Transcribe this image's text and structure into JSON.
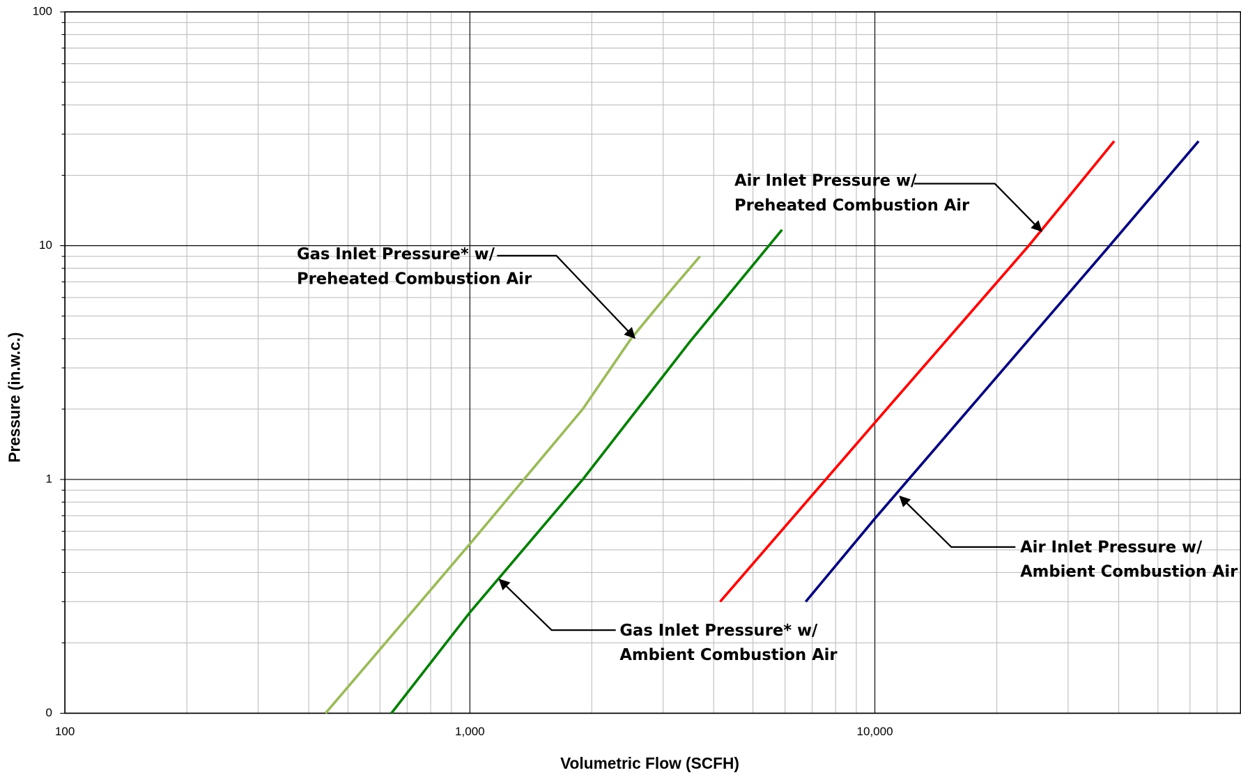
{
  "chart_data": {
    "type": "line",
    "x_label": "Volumetric Flow (SCFH)",
    "y_label": "Pressure (in.w.c.)",
    "log_x": true,
    "log_y": true,
    "grid": true,
    "minor_grid": true,
    "xlim": [
      100,
      80000
    ],
    "xticks": [
      100,
      {
        "value": 1000,
        "label": "1,000"
      },
      {
        "value": 10000,
        "label": "10,000"
      }
    ],
    "ylim": [
      0.1,
      100
    ],
    "yticks": [
      {
        "value": 0.1,
        "label": "0"
      },
      1,
      10,
      100
    ],
    "series": [
      {
        "color": "#9bbb59",
        "x": [
          440,
          1000,
          1900,
          2500,
          3150,
          3700
        ],
        "values": [
          0.1,
          0.53,
          2.0,
          4.0,
          6.5,
          9.0
        ]
      },
      {
        "color": "#008000",
        "x": [
          640,
          1000,
          1900,
          3500,
          5900
        ],
        "values": [
          0.1,
          0.27,
          1.0,
          3.9,
          11.7
        ]
      },
      {
        "color": "#ff0000",
        "x": [
          4150,
          10000,
          24000,
          39000
        ],
        "values": [
          0.3,
          1.75,
          10,
          28
        ]
      },
      {
        "color": "#000080",
        "x": [
          6750,
          10000,
          38000,
          63000
        ],
        "values": [
          0.3,
          0.68,
          10,
          28
        ]
      }
    ],
    "annotations": [
      {
        "lines": [
          "Gas Inlet Pressure* w/",
          "Preheated Combustion Air"
        ]
      },
      {
        "lines": [
          "Air Inlet Pressure w/",
          "Preheated Combustion Air"
        ]
      },
      {
        "lines": [
          "Gas Inlet Pressure* w/",
          "Ambient Combustion Air"
        ]
      },
      {
        "lines": [
          "Air Inlet Pressure w/",
          "Ambient Combustion Air"
        ]
      }
    ]
  }
}
